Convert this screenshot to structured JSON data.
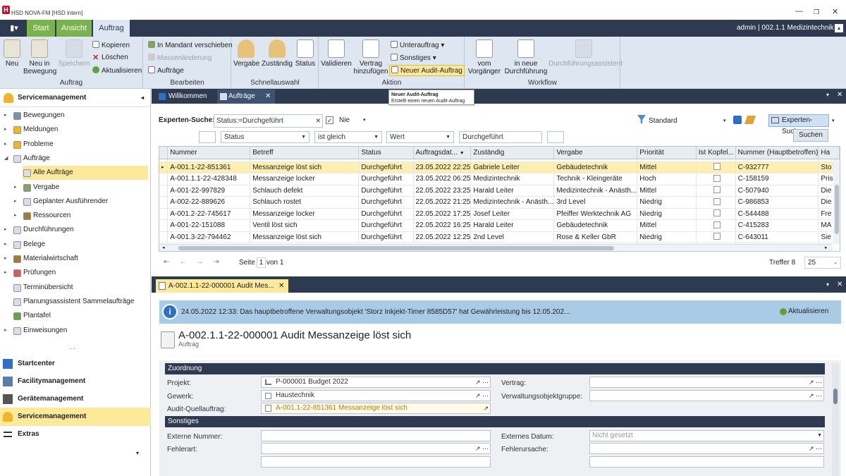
{
  "window": {
    "title": "HSD NOVA-FM [HSD intern]",
    "user": "admin | 002.1.1 Medizintechnik |"
  },
  "tabs": [
    "Start",
    "Ansicht",
    "Auftrag"
  ],
  "ribbon": {
    "auftrag": {
      "label": "Auftrag",
      "neu": "Neu",
      "neu_bewegung": "Neu in Bewegung",
      "speichern": "Speichern",
      "kopieren": "Kopieren",
      "loeschen": "Löschen",
      "aktualisieren": "Aktualisieren"
    },
    "bearbeiten": {
      "label": "Bearbeiten",
      "mandant": "In Mandant verschieben",
      "massen": "Massenänderung",
      "auftraege": "Aufträge"
    },
    "schnell": {
      "label": "Schnellauswahl",
      "vergabe": "Vergabe",
      "zustaendig": "Zuständig",
      "status": "Status"
    },
    "aktion": {
      "label": "Aktion",
      "validieren": "Validieren",
      "vertrag": "Vertrag hinzufügen",
      "unterauftrag": "Unterauftrag",
      "sonstiges": "Sonstiges",
      "audit": "Neuer Audit-Auftrag"
    },
    "workflow": {
      "label": "Workflow",
      "vom": "vom Vorgänger",
      "inneue": "in neue Durchführung",
      "assist": "Durchführungsassistent"
    }
  },
  "tooltip": {
    "title": "Neuer Audit-Auftrag",
    "text": "Erstellt einen neuen Audit-Auftrag"
  },
  "sidebar": {
    "header": "Servicemanagement",
    "items": [
      "Bewegungen",
      "Meldungen",
      "Probleme",
      "Aufträge",
      "Alle Aufträge",
      "Vergabe",
      "Geplanter Ausführender",
      "Ressourcen",
      "Durchführungen",
      "Belege",
      "Materialwirtschaft",
      "Prüfungen",
      "Terminübersicht",
      "Planungsassistent Sammelaufträge",
      "Plantafel",
      "Einweisungen"
    ],
    "sep": "....",
    "modules": [
      "Startcenter",
      "Facilitymanagement",
      "Gerätemanagement",
      "Servicemanagement",
      "Extras"
    ]
  },
  "paneltabs": {
    "willkommen": "Willkommen",
    "auftraege": "Aufträge"
  },
  "search": {
    "label": "Experten-Suche:",
    "value": "Status:=Durchgeführt",
    "nie": "Nie",
    "standard": "Standard",
    "experten": "Experten-Suche",
    "suchen": "Suchen",
    "field": "Status",
    "op": "ist gleich",
    "type": "Wert",
    "val": "Durchgeführt"
  },
  "grid": {
    "headers": [
      "Nummer",
      "Betreff",
      "Status",
      "Auftragsdat...",
      "Zuständig",
      "Vergabe",
      "Priorität",
      "Ist Kopfel...",
      "Nummer (Hauptbetroffen)",
      "Ha"
    ],
    "rows": [
      [
        "A-001.1-22-851361",
        "Messanzeige löst sich",
        "Durchgeführt",
        "23.05.2022 22:25",
        "Gabriele Leiter",
        "Gebäudetechnik",
        "Mittel",
        "C-932777",
        "Sto"
      ],
      [
        "A-001.1.1-22-428348",
        "Messanzeige locker",
        "Durchgeführt",
        "23.05.2022 06:25",
        "Medizintechnik",
        "Technik - Kleingeräte",
        "Hoch",
        "C-158159",
        "Pris"
      ],
      [
        "A-001-22-997829",
        "Schlauch defekt",
        "Durchgeführt",
        "22.05.2022 23:25",
        "Harald Leiter",
        "Medizintechnik - Anästh...",
        "Mittel",
        "C-507940",
        "Die"
      ],
      [
        "A-002-22-889626",
        "Schlauch rostet",
        "Durchgeführt",
        "22.05.2022 21:25",
        "Medizintechnik - Anästh...",
        "3rd Level",
        "Niedrig",
        "C-986853",
        "Die"
      ],
      [
        "A-001.2-22-745617",
        "Messanzeige locker",
        "Durchgeführt",
        "22.05.2022 17:25",
        "Josef Leiter",
        "Pfeiffer Werktechnik AG",
        "Niedrig",
        "C-544488",
        "Fre"
      ],
      [
        "A-001-22-151088",
        "Ventil löst sich",
        "Durchgeführt",
        "22.05.2022 16:25",
        "Harald Leiter",
        "Gebäudetechnik",
        "Mittel",
        "C-415283",
        "MA"
      ],
      [
        "A-001.3-22-794462",
        "Messanzeige löst sich",
        "Durchgeführt",
        "22.05.2022 12:25",
        "2nd Level",
        "Rose & Keller GbR",
        "Niedrig",
        "C-643011",
        "Sie"
      ]
    ]
  },
  "pager": {
    "seite": "Seite",
    "page": "1",
    "von": "von 1",
    "treffer": "Treffer 8",
    "size": "25"
  },
  "detail": {
    "tab": "A-002.1.1-22-000001 Audit Mes...",
    "info": "24.05.2022 12:33: Das hauptbetroffene Verwaltungsobjekt 'Storz Inkjekt-Timer 8585D57' hat Gewährleistung bis 12.05.202...",
    "aktualisieren": "Aktualisieren",
    "title": "A-002.1.1-22-000001 Audit Messanzeige löst sich",
    "subtitle": "Auftrag",
    "zuordnung": "Zuordnung",
    "projekt_l": "Projekt:",
    "projekt_v": "P-000001 Budget 2022",
    "gewerk_l": "Gewerk:",
    "gewerk_v": "Haustechnik",
    "audit_l": "Audit-Quellauftrag:",
    "audit_v": "A-001.1-22-851361 Messanzeige löst sich",
    "vertrag_l": "Vertrag:",
    "vog_l": "Verwaltungsobjektgruppe:",
    "sonstiges": "Sonstiges",
    "extnr_l": "Externe Nummer:",
    "extdat_l": "Externes Datum:",
    "extdat_v": "Nicht gesetzt",
    "fehlerart_l": "Fehlerart:",
    "fehlerursache_l": "Fehlerursache:"
  },
  "colors": {
    "navy": "#2d3a4f",
    "green": "#7ab24e",
    "ribbon": "#dde6f1",
    "selected": "#fdefb1",
    "audit": "#c47a12"
  }
}
